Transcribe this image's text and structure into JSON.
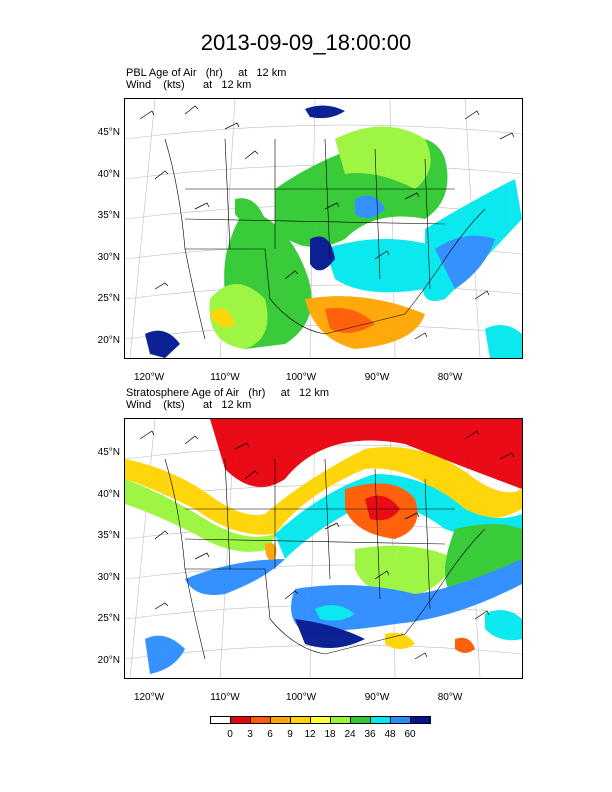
{
  "title": "2013-09-09_18:00:00",
  "panels": [
    {
      "field_line": "PBL Age of Air   (hr)     at   12 km",
      "wind_line": "Wind    (kts)      at   12 km"
    },
    {
      "field_line": "Stratosphere Age of Air   (hr)     at   12 km",
      "wind_line": "Wind    (kts)      at   12 km"
    }
  ],
  "lat_labels": [
    "45°N",
    "40°N",
    "35°N",
    "30°N",
    "25°N",
    "20°N"
  ],
  "lon_labels": [
    "120°W",
    "110°W",
    "100°W",
    "90°W",
    "80°W"
  ],
  "colorbar": {
    "colors": [
      "#ffffff",
      "#e8000b",
      "#ff5a00",
      "#ffa500",
      "#ffd400",
      "#ffff33",
      "#9af53a",
      "#2fc92f",
      "#00e8ee",
      "#2a8cff",
      "#00168f"
    ],
    "labels": [
      "0",
      "3",
      "6",
      "9",
      "12",
      "18",
      "24",
      "36",
      "48",
      "60"
    ]
  }
}
